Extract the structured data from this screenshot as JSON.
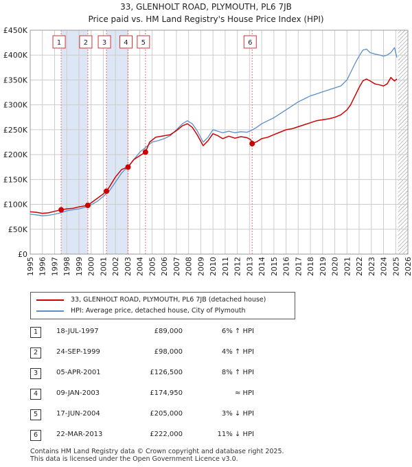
{
  "title_line1": "33, GLENHOLT ROAD, PLYMOUTH, PL6 7JB",
  "title_line2": "Price paid vs. HM Land Registry's House Price Index (HPI)",
  "colors": {
    "property": "#cc0000",
    "hpi": "#5b8ec6",
    "grid": "#cccccc",
    "shade": "#dde6f4"
  },
  "legend": {
    "property": "33, GLENHOLT ROAD, PLYMOUTH, PL6 7JB (detached house)",
    "hpi": "HPI: Average price, detached house, City of Plymouth"
  },
  "transactions": [
    {
      "n": "1",
      "date": "18-JUL-1997",
      "price": "£89,000",
      "hpi": "6% ↑ HPI"
    },
    {
      "n": "2",
      "date": "24-SEP-1999",
      "price": "£98,000",
      "hpi": "4% ↑ HPI"
    },
    {
      "n": "3",
      "date": "05-APR-2001",
      "price": "£126,500",
      "hpi": "8% ↑ HPI"
    },
    {
      "n": "4",
      "date": "09-JAN-2003",
      "price": "£174,950",
      "hpi": "≈ HPI"
    },
    {
      "n": "5",
      "date": "17-JUN-2004",
      "price": "£205,000",
      "hpi": "3% ↓ HPI"
    },
    {
      "n": "6",
      "date": "22-MAR-2013",
      "price": "£222,000",
      "hpi": "11% ↓ HPI"
    }
  ],
  "footer_line1": "Contains HM Land Registry data © Crown copyright and database right 2025.",
  "footer_line2": "This data is licensed under the Open Government Licence v3.0.",
  "chart_data": {
    "type": "line",
    "xlim": [
      1995,
      2026
    ],
    "ylim": [
      0,
      450000
    ],
    "y_ticks": [
      0,
      50000,
      100000,
      150000,
      200000,
      250000,
      300000,
      350000,
      400000,
      450000
    ],
    "y_tick_labels": [
      "£0",
      "£50K",
      "£100K",
      "£150K",
      "£200K",
      "£250K",
      "£300K",
      "£350K",
      "£400K",
      "£450K"
    ],
    "x_ticks": [
      1995,
      1996,
      1997,
      1998,
      1999,
      2000,
      2001,
      2002,
      2003,
      2004,
      2005,
      2006,
      2007,
      2008,
      2009,
      2010,
      2011,
      2012,
      2013,
      2014,
      2015,
      2016,
      2017,
      2018,
      2019,
      2020,
      2021,
      2022,
      2023,
      2024,
      2025,
      2026
    ],
    "shaded_periods": [
      [
        1997.54,
        1999.73
      ],
      [
        2001.26,
        2003.03
      ]
    ],
    "data_end_year": 2025.2,
    "sales": [
      {
        "label": "1",
        "x": 1997.54,
        "y": 89000
      },
      {
        "label": "2",
        "x": 1999.73,
        "y": 98000
      },
      {
        "label": "3",
        "x": 2001.26,
        "y": 126500
      },
      {
        "label": "4",
        "x": 2003.03,
        "y": 174950
      },
      {
        "label": "5",
        "x": 2004.46,
        "y": 205000
      },
      {
        "label": "6",
        "x": 2013.22,
        "y": 222000
      }
    ],
    "series": [
      {
        "name": "33, GLENHOLT ROAD, PLYMOUTH, PL6 7JB (detached house)",
        "x": [
          1995,
          1995.5,
          1996,
          1996.5,
          1997,
          1997.54,
          1998,
          1998.5,
          1999,
          1999.73,
          2000,
          2000.5,
          2001,
          2001.26,
          2001.5,
          2002,
          2002.5,
          2003.03,
          2003.5,
          2004,
          2004.46,
          2004.8,
          2005.3,
          2006,
          2006.5,
          2007,
          2007.5,
          2007.9,
          2008.3,
          2008.7,
          2009.2,
          2009.6,
          2010,
          2010.4,
          2010.8,
          2011.3,
          2011.8,
          2012.3,
          2012.8,
          2013.1,
          2013.22,
          2013.6,
          2014,
          2014.5,
          2015,
          2015.5,
          2016,
          2016.5,
          2017,
          2017.5,
          2018,
          2018.5,
          2019,
          2019.5,
          2020,
          2020.5,
          2021,
          2021.3,
          2021.7,
          2022,
          2022.3,
          2022.6,
          2022.9,
          2023.3,
          2023.7,
          2024,
          2024.3,
          2024.6,
          2024.9,
          2025.1
        ],
        "y": [
          85000,
          84000,
          82000,
          83000,
          86000,
          89000,
          91000,
          92000,
          95000,
          98000,
          103000,
          112000,
          121000,
          126500,
          135000,
          155000,
          170000,
          174950,
          190000,
          198000,
          205000,
          225000,
          235000,
          238000,
          240000,
          248000,
          258000,
          262000,
          255000,
          240000,
          218000,
          228000,
          242000,
          238000,
          232000,
          237000,
          233000,
          236000,
          234000,
          230000,
          222000,
          226000,
          232000,
          235000,
          240000,
          245000,
          250000,
          252000,
          256000,
          260000,
          264000,
          268000,
          270000,
          272000,
          275000,
          280000,
          290000,
          300000,
          320000,
          335000,
          348000,
          352000,
          348000,
          342000,
          340000,
          338000,
          342000,
          355000,
          348000,
          352000
        ]
      },
      {
        "name": "HPI: Average price, detached house, City of Plymouth",
        "x": [
          1995,
          1995.5,
          1996,
          1996.5,
          1997,
          1997.5,
          1998,
          1998.5,
          1999,
          1999.5,
          2000,
          2000.5,
          2001,
          2001.5,
          2002,
          2002.5,
          2003,
          2003.5,
          2004,
          2004.5,
          2005,
          2005.5,
          2006,
          2006.5,
          2007,
          2007.5,
          2007.9,
          2008.3,
          2008.7,
          2009.2,
          2009.6,
          2010,
          2010.4,
          2010.8,
          2011.3,
          2011.8,
          2012.3,
          2012.8,
          2013.2,
          2013.6,
          2014,
          2014.5,
          2015,
          2015.5,
          2016,
          2016.5,
          2017,
          2017.5,
          2018,
          2018.5,
          2019,
          2019.5,
          2020,
          2020.5,
          2021,
          2021.3,
          2021.7,
          2022,
          2022.3,
          2022.6,
          2022.9,
          2023.3,
          2023.7,
          2024,
          2024.3,
          2024.6,
          2024.9,
          2025.1
        ],
        "y": [
          80000,
          79000,
          77000,
          78000,
          80000,
          83000,
          87000,
          89000,
          91000,
          94000,
          99000,
          106000,
          116000,
          127000,
          145000,
          163000,
          175000,
          190000,
          205000,
          215000,
          225000,
          228000,
          232000,
          238000,
          250000,
          262000,
          268000,
          262000,
          248000,
          225000,
          235000,
          250000,
          247000,
          244000,
          247000,
          244000,
          246000,
          245000,
          249000,
          255000,
          262000,
          268000,
          274000,
          282000,
          290000,
          298000,
          306000,
          312000,
          318000,
          322000,
          326000,
          330000,
          334000,
          338000,
          350000,
          365000,
          385000,
          398000,
          410000,
          412000,
          405000,
          402000,
          400000,
          398000,
          400000,
          405000,
          415000,
          395000
        ]
      }
    ]
  }
}
